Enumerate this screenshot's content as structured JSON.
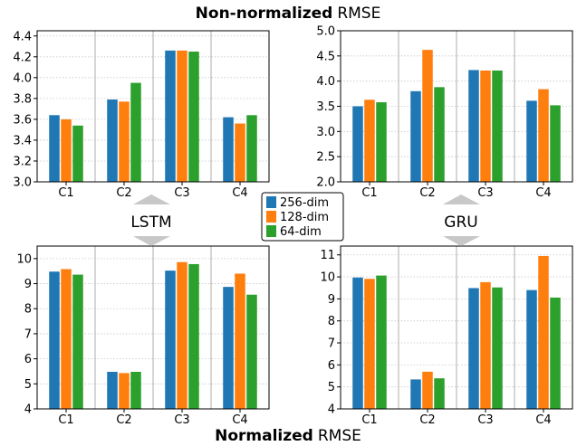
{
  "figure": {
    "title_top_bold": "Non-normalized",
    "title_top_rest": "RMSE",
    "title_bottom_bold": "Normalized",
    "title_bottom_rest": "RMSE",
    "left_group_label": "LSTM",
    "right_group_label": "GRU"
  },
  "legend": [
    {
      "label": "256-dim",
      "color": "#1f77b4"
    },
    {
      "label": "128-dim",
      "color": "#ff7f0e"
    },
    {
      "label": "64-dim",
      "color": "#2ca02c"
    }
  ],
  "chart_data": [
    {
      "type": "bar",
      "title": "Non-normalized RMSE (LSTM)",
      "categories": [
        "C1",
        "C2",
        "C3",
        "C4"
      ],
      "ylim": [
        3.0,
        4.45
      ],
      "yticks": [
        "3.0",
        "3.2",
        "3.4",
        "3.6",
        "3.8",
        "4.0",
        "4.2",
        "4.4"
      ],
      "series": [
        {
          "name": "256-dim",
          "values": [
            3.64,
            3.79,
            4.26,
            3.62
          ]
        },
        {
          "name": "128-dim",
          "values": [
            3.6,
            3.77,
            4.26,
            3.56
          ]
        },
        {
          "name": "64-dim",
          "values": [
            3.54,
            3.95,
            4.25,
            3.64
          ]
        }
      ],
      "grid": true
    },
    {
      "type": "bar",
      "title": "Non-normalized RMSE (GRU)",
      "categories": [
        "C1",
        "C2",
        "C3",
        "C4"
      ],
      "ylim": [
        2.0,
        5.0
      ],
      "yticks": [
        "2.0",
        "2.5",
        "3.0",
        "3.5",
        "4.0",
        "4.5",
        "5.0"
      ],
      "series": [
        {
          "name": "256-dim",
          "values": [
            3.5,
            3.8,
            4.22,
            3.61
          ]
        },
        {
          "name": "128-dim",
          "values": [
            3.63,
            4.62,
            4.21,
            3.84
          ]
        },
        {
          "name": "64-dim",
          "values": [
            3.58,
            3.88,
            4.21,
            3.52
          ]
        }
      ],
      "grid": true
    },
    {
      "type": "bar",
      "title": "Normalized RMSE (LSTM)",
      "categories": [
        "C1",
        "C2",
        "C3",
        "C4"
      ],
      "ylim": [
        4,
        10.5
      ],
      "yticks": [
        "4",
        "5",
        "6",
        "7",
        "8",
        "9",
        "10"
      ],
      "series": [
        {
          "name": "256-dim",
          "values": [
            9.48,
            5.48,
            9.52,
            8.87
          ]
        },
        {
          "name": "128-dim",
          "values": [
            9.58,
            5.43,
            9.86,
            9.4
          ]
        },
        {
          "name": "64-dim",
          "values": [
            9.36,
            5.48,
            9.78,
            8.56
          ]
        }
      ],
      "grid": true
    },
    {
      "type": "bar",
      "title": "Normalized RMSE (GRU)",
      "categories": [
        "C1",
        "C2",
        "C3",
        "C4"
      ],
      "ylim": [
        4,
        11.4
      ],
      "yticks": [
        "4",
        "5",
        "6",
        "7",
        "8",
        "9",
        "10",
        "11"
      ],
      "series": [
        {
          "name": "256-dim",
          "values": [
            9.97,
            5.34,
            9.49,
            9.4
          ]
        },
        {
          "name": "128-dim",
          "values": [
            9.91,
            5.69,
            9.76,
            10.95
          ]
        },
        {
          "name": "64-dim",
          "values": [
            10.06,
            5.39,
            9.52,
            9.06
          ]
        }
      ],
      "grid": true
    }
  ]
}
